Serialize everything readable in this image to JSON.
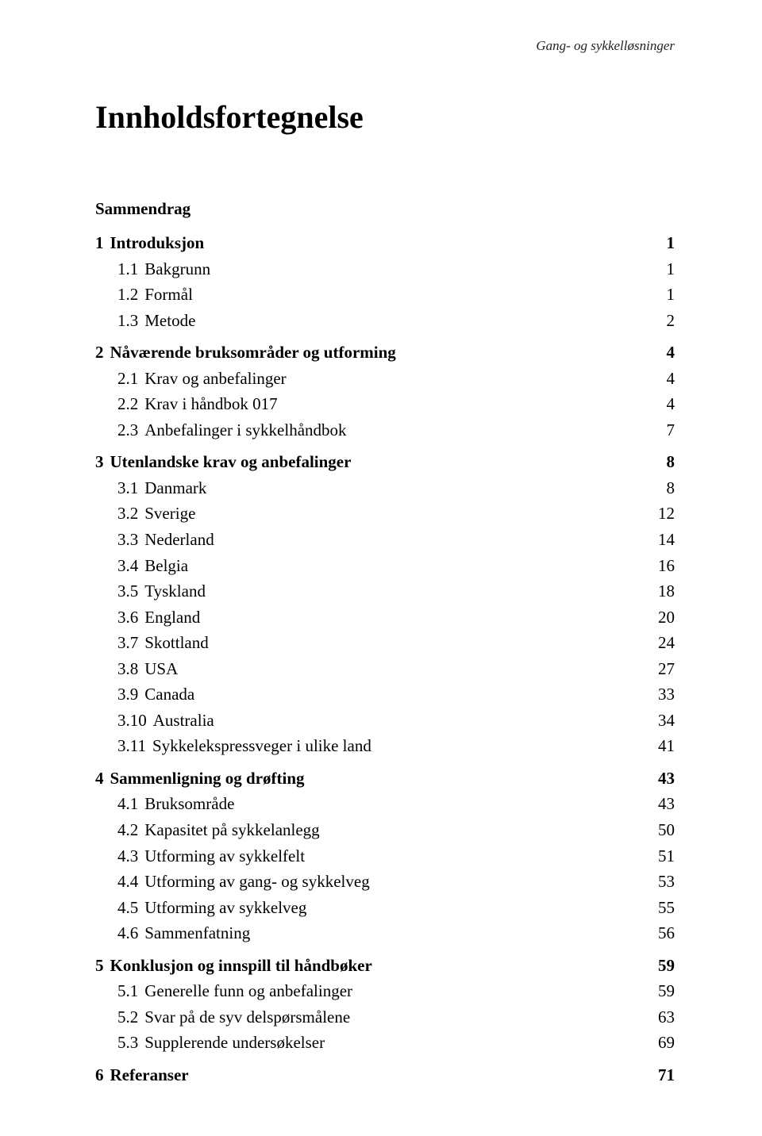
{
  "running_header": "Gang- og sykkelløsninger",
  "title": "Innholdsfortegnelse",
  "sammendrag": "Sammendrag",
  "toc": [
    {
      "num": "1",
      "text": "Introduksjon",
      "page": "1",
      "level": 1,
      "bold": true,
      "group_start": true
    },
    {
      "num": "1.1",
      "text": "Bakgrunn",
      "page": "1",
      "level": 2,
      "bold": false
    },
    {
      "num": "1.2",
      "text": "Formål",
      "page": "1",
      "level": 2,
      "bold": false
    },
    {
      "num": "1.3",
      "text": "Metode",
      "page": "2",
      "level": 2,
      "bold": false
    },
    {
      "num": "2",
      "text": "Nåværende bruksområder og utforming",
      "page": "4",
      "level": 1,
      "bold": true,
      "group_start": true
    },
    {
      "num": "2.1",
      "text": "Krav og anbefalinger",
      "page": "4",
      "level": 2,
      "bold": false
    },
    {
      "num": "2.2",
      "text": "Krav i håndbok 017",
      "page": "4",
      "level": 2,
      "bold": false
    },
    {
      "num": "2.3",
      "text": "Anbefalinger i sykkelhåndbok",
      "page": "7",
      "level": 2,
      "bold": false
    },
    {
      "num": "3",
      "text": "Utenlandske krav og anbefalinger",
      "page": "8",
      "level": 1,
      "bold": true,
      "group_start": true
    },
    {
      "num": "3.1",
      "text": "Danmark",
      "page": "8",
      "level": 2,
      "bold": false
    },
    {
      "num": "3.2",
      "text": "Sverige",
      "page": "12",
      "level": 2,
      "bold": false
    },
    {
      "num": "3.3",
      "text": "Nederland",
      "page": "14",
      "level": 2,
      "bold": false
    },
    {
      "num": "3.4",
      "text": "Belgia",
      "page": "16",
      "level": 2,
      "bold": false
    },
    {
      "num": "3.5",
      "text": "Tyskland",
      "page": "18",
      "level": 2,
      "bold": false
    },
    {
      "num": "3.6",
      "text": "England",
      "page": "20",
      "level": 2,
      "bold": false
    },
    {
      "num": "3.7",
      "text": "Skottland",
      "page": "24",
      "level": 2,
      "bold": false
    },
    {
      "num": "3.8",
      "text": "USA",
      "page": "27",
      "level": 2,
      "bold": false
    },
    {
      "num": "3.9",
      "text": "Canada",
      "page": "33",
      "level": 2,
      "bold": false
    },
    {
      "num": "3.10",
      "text": "Australia",
      "page": "34",
      "level": 2,
      "bold": false
    },
    {
      "num": "3.11",
      "text": "Sykkelekspressveger i ulike land",
      "page": "41",
      "level": 2,
      "bold": false
    },
    {
      "num": "4",
      "text": "Sammenligning og drøfting",
      "page": "43",
      "level": 1,
      "bold": true,
      "group_start": true
    },
    {
      "num": "4.1",
      "text": "Bruksområde",
      "page": "43",
      "level": 2,
      "bold": false
    },
    {
      "num": "4.2",
      "text": "Kapasitet på sykkelanlegg",
      "page": "50",
      "level": 2,
      "bold": false
    },
    {
      "num": "4.3",
      "text": "Utforming av sykkelfelt",
      "page": "51",
      "level": 2,
      "bold": false
    },
    {
      "num": "4.4",
      "text": "Utforming av gang- og sykkelveg",
      "page": "53",
      "level": 2,
      "bold": false
    },
    {
      "num": "4.5",
      "text": "Utforming av sykkelveg",
      "page": "55",
      "level": 2,
      "bold": false
    },
    {
      "num": "4.6",
      "text": "Sammenfatning",
      "page": "56",
      "level": 2,
      "bold": false
    },
    {
      "num": "5",
      "text": "Konklusjon og innspill til håndbøker",
      "page": "59",
      "level": 1,
      "bold": true,
      "group_start": true
    },
    {
      "num": "5.1",
      "text": "Generelle funn og anbefalinger",
      "page": "59",
      "level": 2,
      "bold": false
    },
    {
      "num": "5.2",
      "text": "Svar på de syv delspørsmålene",
      "page": "63",
      "level": 2,
      "bold": false
    },
    {
      "num": "5.3",
      "text": "Supplerende undersøkelser",
      "page": "69",
      "level": 2,
      "bold": false
    },
    {
      "num": "6",
      "text": "Referanser",
      "page": "71",
      "level": 1,
      "bold": true,
      "group_start": true
    }
  ]
}
